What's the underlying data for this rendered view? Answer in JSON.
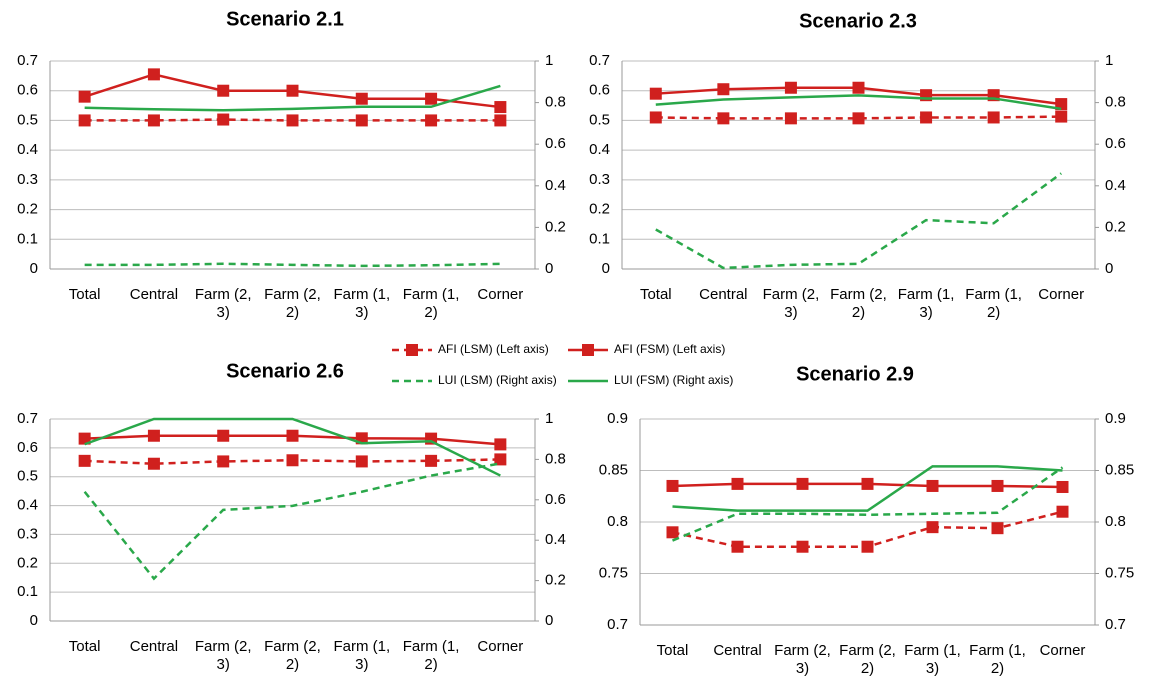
{
  "chart_data": [
    {
      "type": "line",
      "title": "Scenario 2.1",
      "categories": [
        "Total",
        "Central",
        "Farm (2, 3)",
        "Farm (2, 2)",
        "Farm (1, 3)",
        "Farm (1, 2)",
        "Corner"
      ],
      "ylim": [
        0,
        0.7
      ],
      "yticks": [
        0,
        0.1,
        0.2,
        0.3,
        0.4,
        0.5,
        0.6,
        0.7
      ],
      "y2lim": [
        0,
        1
      ],
      "y2ticks": [
        0,
        0.2,
        0.4,
        0.6,
        0.8,
        1
      ],
      "grid": true,
      "series": [
        {
          "name": "AFI (LSM) (Left axis)",
          "color": "#d0201e",
          "dashed": true,
          "marker": "square",
          "values": [
            0.5,
            0.5,
            0.503,
            0.5,
            0.5,
            0.5,
            0.5
          ]
        },
        {
          "name": "AFI (FSM) (Left axis)",
          "color": "#d0201e",
          "dashed": false,
          "marker": "square",
          "values": [
            0.58,
            0.655,
            0.6,
            0.6,
            0.573,
            0.573,
            0.545
          ]
        },
        {
          "name": "LUI (LSM) (Right axis)",
          "color": "#2aa84a",
          "dashed": true,
          "axis": "y2",
          "values": [
            0.02,
            0.02,
            0.025,
            0.02,
            0.015,
            0.018,
            0.025
          ]
        },
        {
          "name": "LUI (FSM) (Right axis)",
          "color": "#2aa84a",
          "dashed": false,
          "axis": "y2",
          "values": [
            0.775,
            0.768,
            0.763,
            0.77,
            0.78,
            0.78,
            0.88
          ]
        }
      ]
    },
    {
      "type": "line",
      "title": "Scenario 2.3",
      "categories": [
        "Total",
        "Central",
        "Farm (2, 3)",
        "Farm (2, 2)",
        "Farm (1, 3)",
        "Farm (1, 2)",
        "Corner"
      ],
      "ylim": [
        0,
        0.7
      ],
      "yticks": [
        0,
        0.1,
        0.2,
        0.3,
        0.4,
        0.5,
        0.6,
        0.7
      ],
      "y2lim": [
        0,
        1
      ],
      "y2ticks": [
        0,
        0.2,
        0.4,
        0.6,
        0.8,
        1
      ],
      "grid": true,
      "series": [
        {
          "name": "AFI (LSM) (Left axis)",
          "color": "#d0201e",
          "dashed": true,
          "marker": "square",
          "values": [
            0.51,
            0.507,
            0.507,
            0.507,
            0.51,
            0.51,
            0.513
          ]
        },
        {
          "name": "AFI (FSM) (Left axis)",
          "color": "#d0201e",
          "dashed": false,
          "marker": "square",
          "values": [
            0.59,
            0.605,
            0.61,
            0.61,
            0.585,
            0.585,
            0.555
          ]
        },
        {
          "name": "LUI (LSM) (Right axis)",
          "color": "#2aa84a",
          "dashed": true,
          "axis": "y2",
          "values": [
            0.19,
            0.005,
            0.02,
            0.025,
            0.235,
            0.22,
            0.46
          ]
        },
        {
          "name": "LUI (FSM) (Right axis)",
          "color": "#2aa84a",
          "dashed": false,
          "axis": "y2",
          "values": [
            0.79,
            0.815,
            0.825,
            0.835,
            0.82,
            0.82,
            0.77
          ]
        }
      ]
    },
    {
      "type": "line",
      "title": "Scenario 2.6",
      "categories": [
        "Total",
        "Central",
        "Farm (2, 3)",
        "Farm (2, 2)",
        "Farm (1, 3)",
        "Farm (1, 2)",
        "Corner"
      ],
      "ylim": [
        0,
        0.7
      ],
      "yticks": [
        0,
        0.1,
        0.2,
        0.3,
        0.4,
        0.5,
        0.6,
        0.7
      ],
      "y2lim": [
        0,
        1
      ],
      "y2ticks": [
        0,
        0.2,
        0.4,
        0.6,
        0.8,
        1
      ],
      "grid": true,
      "series": [
        {
          "name": "AFI (LSM) (Left axis)",
          "color": "#d0201e",
          "dashed": true,
          "marker": "square",
          "values": [
            0.555,
            0.545,
            0.553,
            0.557,
            0.553,
            0.555,
            0.56
          ]
        },
        {
          "name": "AFI (FSM) (Left axis)",
          "color": "#d0201e",
          "dashed": false,
          "marker": "square",
          "values": [
            0.632,
            0.642,
            0.642,
            0.642,
            0.633,
            0.632,
            0.612
          ]
        },
        {
          "name": "LUI (LSM) (Right axis)",
          "color": "#2aa84a",
          "dashed": true,
          "axis": "y2",
          "values": [
            0.64,
            0.21,
            0.55,
            0.57,
            0.64,
            0.72,
            0.78
          ]
        },
        {
          "name": "LUI (FSM) (Right axis)",
          "color": "#2aa84a",
          "dashed": false,
          "axis": "y2",
          "values": [
            0.875,
            1,
            1,
            1,
            0.88,
            0.89,
            0.72
          ]
        }
      ]
    },
    {
      "type": "line",
      "title": "Scenario 2.9",
      "categories": [
        "Total",
        "Central",
        "Farm (2, 3)",
        "Farm (2, 2)",
        "Farm (1, 3)",
        "Farm (1, 2)",
        "Corner"
      ],
      "ylim": [
        0.7,
        0.9
      ],
      "yticks": [
        0.7,
        0.75,
        0.8,
        0.85,
        0.9
      ],
      "y2lim": [
        0.7,
        0.9
      ],
      "y2ticks": [
        0.7,
        0.75,
        0.8,
        0.85,
        0.9
      ],
      "grid": true,
      "series": [
        {
          "name": "AFI (LSM) (Left axis)",
          "color": "#d0201e",
          "dashed": true,
          "marker": "square",
          "values": [
            0.79,
            0.776,
            0.776,
            0.776,
            0.795,
            0.794,
            0.81
          ]
        },
        {
          "name": "AFI (FSM) (Left axis)",
          "color": "#d0201e",
          "dashed": false,
          "marker": "square",
          "values": [
            0.835,
            0.837,
            0.837,
            0.837,
            0.835,
            0.835,
            0.834
          ]
        },
        {
          "name": "LUI (LSM) (Right axis)",
          "color": "#2aa84a",
          "dashed": true,
          "axis": "y2",
          "values": [
            0.782,
            0.808,
            0.808,
            0.807,
            0.808,
            0.809,
            0.853
          ]
        },
        {
          "name": "LUI (FSM) (Right axis)",
          "color": "#2aa84a",
          "dashed": false,
          "axis": "y2",
          "values": [
            0.815,
            0.811,
            0.811,
            0.811,
            0.854,
            0.854,
            0.85
          ]
        }
      ]
    }
  ]
}
